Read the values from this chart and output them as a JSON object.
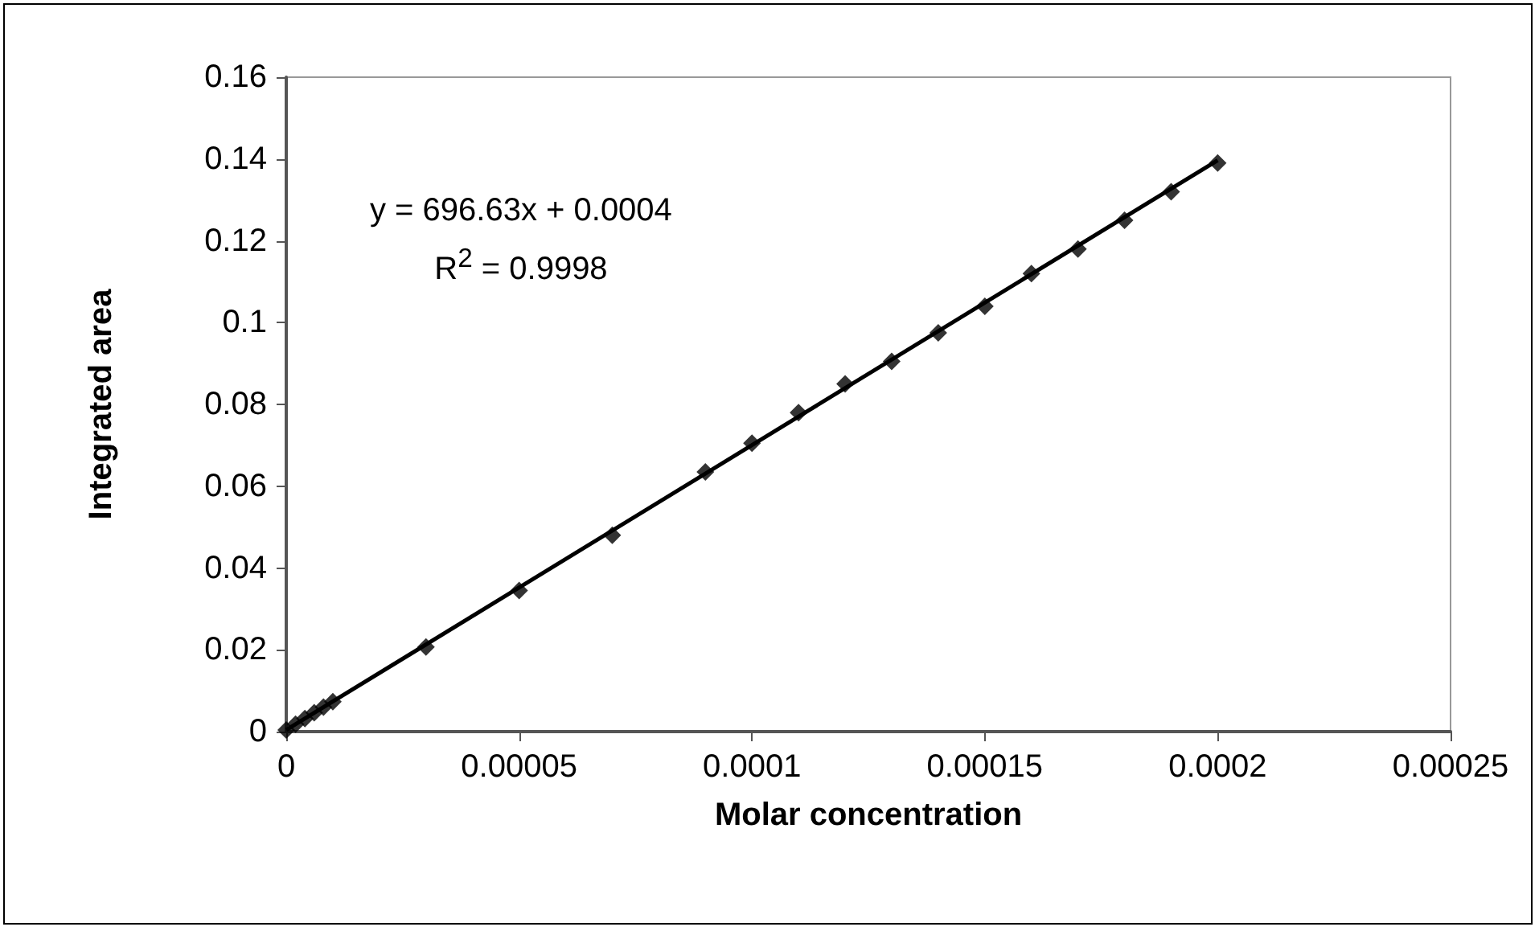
{
  "chart_data": {
    "type": "scatter",
    "xlabel": "Molar concentration",
    "ylabel": "Integrated area",
    "x": [
      0,
      2e-06,
      4e-06,
      6e-06,
      8e-06,
      1e-05,
      3e-05,
      5e-05,
      7e-05,
      9e-05,
      0.0001,
      0.00011,
      0.00012,
      0.00013,
      0.00014,
      0.00015,
      0.00016,
      0.00017,
      0.00018,
      0.00019,
      0.0002
    ],
    "series": [
      {
        "marker": "diamond",
        "color": "#000000",
        "values": [
          0.0004,
          0.0018,
          0.0032,
          0.0046,
          0.006,
          0.0073,
          0.0207,
          0.0345,
          0.048,
          0.0635,
          0.0705,
          0.078,
          0.085,
          0.0905,
          0.0975,
          0.104,
          0.112,
          0.118,
          0.125,
          0.132,
          0.139
        ]
      },
      {
        "type": "line",
        "marker": "none",
        "color": "#000000",
        "x": [
          0,
          0.0002
        ],
        "values": [
          0.0004,
          0.1397
        ]
      }
    ],
    "line_style": "solid",
    "grid": false,
    "xlim": [
      0,
      0.00025
    ],
    "xticks": [
      0,
      {
        "value": 5e-05,
        "label": "0.00005"
      },
      0.0001,
      0.00015,
      0.0002,
      0.00025
    ],
    "ylim": [
      0,
      0.16
    ],
    "yticks": [
      0,
      0.02,
      0.04,
      0.06,
      0.08,
      0.1,
      0.12,
      0.14,
      0.16
    ],
    "annotations": [
      "y = 696.63x + 0.0004",
      "R$^{2}$ = 0.9998"
    ]
  }
}
